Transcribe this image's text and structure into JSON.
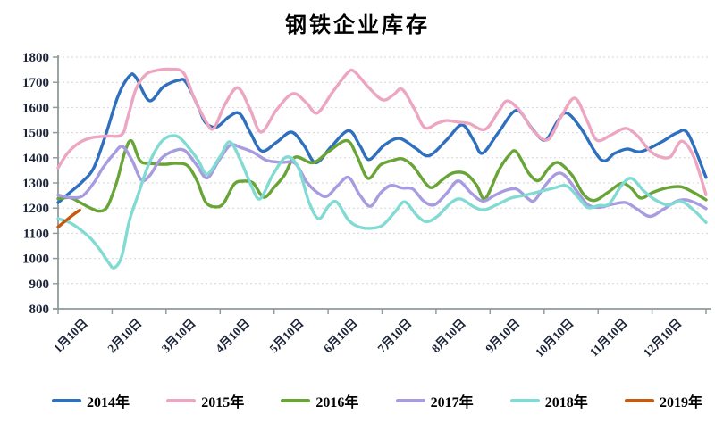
{
  "title": "钢铁企业库存",
  "chart_data": {
    "type": "line",
    "title": "钢铁企业库存",
    "xlabel": "",
    "ylabel": "",
    "x_axis": {
      "tick_labels": [
        "1月10日",
        "2月10日",
        "3月10日",
        "4月10日",
        "5月10日",
        "6月10日",
        "7月10日",
        "8月10日",
        "9月10日",
        "10月10日",
        "11月10日",
        "12月10日"
      ],
      "range_months": [
        0,
        12
      ]
    },
    "y_axis": {
      "min": 800,
      "max": 1800,
      "step": 100,
      "tick_labels": [
        "800",
        "900",
        "1000",
        "1100",
        "1200",
        "1300",
        "1400",
        "1500",
        "1600",
        "1700",
        "1800"
      ]
    },
    "grid": "horizontal-dashed",
    "legend_position": "bottom",
    "style_colors": {
      "axis": "#8f9a9b",
      "grid": "#d6d6d6",
      "tick_text": "#1b2338",
      "title_text": "#000000"
    },
    "series": [
      {
        "name": "2014年",
        "color": "#2e6fbe",
        "points": [
          [
            0,
            1222
          ],
          [
            0.22,
            1262
          ],
          [
            0.45,
            1305
          ],
          [
            0.66,
            1360
          ],
          [
            0.88,
            1490
          ],
          [
            1.11,
            1645
          ],
          [
            1.32,
            1725
          ],
          [
            1.44,
            1720
          ],
          [
            1.69,
            1627
          ],
          [
            1.95,
            1682
          ],
          [
            2.23,
            1708
          ],
          [
            2.37,
            1700
          ],
          [
            2.6,
            1600
          ],
          [
            2.73,
            1540
          ],
          [
            2.93,
            1522
          ],
          [
            3.16,
            1562
          ],
          [
            3.36,
            1576
          ],
          [
            3.56,
            1500
          ],
          [
            3.77,
            1427
          ],
          [
            4.05,
            1462
          ],
          [
            4.32,
            1502
          ],
          [
            4.55,
            1450
          ],
          [
            4.77,
            1380
          ],
          [
            5.05,
            1442
          ],
          [
            5.38,
            1508
          ],
          [
            5.59,
            1448
          ],
          [
            5.76,
            1393
          ],
          [
            6.04,
            1450
          ],
          [
            6.32,
            1477
          ],
          [
            6.62,
            1438
          ],
          [
            6.87,
            1408
          ],
          [
            7.2,
            1472
          ],
          [
            7.48,
            1531
          ],
          [
            7.7,
            1468
          ],
          [
            7.86,
            1418
          ],
          [
            8.16,
            1502
          ],
          [
            8.49,
            1589
          ],
          [
            8.77,
            1518
          ],
          [
            9.02,
            1470
          ],
          [
            9.25,
            1545
          ],
          [
            9.42,
            1578
          ],
          [
            9.68,
            1518
          ],
          [
            10.06,
            1392
          ],
          [
            10.31,
            1418
          ],
          [
            10.54,
            1435
          ],
          [
            10.79,
            1424
          ],
          [
            11.17,
            1462
          ],
          [
            11.47,
            1500
          ],
          [
            11.67,
            1494
          ],
          [
            12,
            1322
          ]
        ]
      },
      {
        "name": "2015年",
        "color": "#eda6c2",
        "points": [
          [
            0,
            1360
          ],
          [
            0.18,
            1420
          ],
          [
            0.41,
            1462
          ],
          [
            0.63,
            1480
          ],
          [
            0.91,
            1486
          ],
          [
            1.18,
            1492
          ],
          [
            1.29,
            1560
          ],
          [
            1.44,
            1672
          ],
          [
            1.62,
            1730
          ],
          [
            1.82,
            1747
          ],
          [
            2.07,
            1752
          ],
          [
            2.32,
            1738
          ],
          [
            2.52,
            1637
          ],
          [
            2.73,
            1548
          ],
          [
            2.88,
            1516
          ],
          [
            3.09,
            1612
          ],
          [
            3.33,
            1678
          ],
          [
            3.56,
            1590
          ],
          [
            3.76,
            1502
          ],
          [
            4.05,
            1592
          ],
          [
            4.35,
            1655
          ],
          [
            4.6,
            1618
          ],
          [
            4.8,
            1578
          ],
          [
            5.08,
            1660
          ],
          [
            5.35,
            1735
          ],
          [
            5.48,
            1744
          ],
          [
            5.74,
            1682
          ],
          [
            6.01,
            1630
          ],
          [
            6.21,
            1650
          ],
          [
            6.37,
            1672
          ],
          [
            6.59,
            1598
          ],
          [
            6.79,
            1520
          ],
          [
            7.03,
            1538
          ],
          [
            7.2,
            1548
          ],
          [
            7.4,
            1542
          ],
          [
            7.61,
            1536
          ],
          [
            7.91,
            1513
          ],
          [
            8.16,
            1585
          ],
          [
            8.32,
            1626
          ],
          [
            8.56,
            1585
          ],
          [
            8.8,
            1508
          ],
          [
            9.07,
            1472
          ],
          [
            9.32,
            1565
          ],
          [
            9.57,
            1637
          ],
          [
            9.8,
            1545
          ],
          [
            9.98,
            1470
          ],
          [
            10.25,
            1492
          ],
          [
            10.51,
            1517
          ],
          [
            10.73,
            1487
          ],
          [
            10.94,
            1432
          ],
          [
            11.12,
            1406
          ],
          [
            11.34,
            1404
          ],
          [
            11.55,
            1466
          ],
          [
            11.78,
            1400
          ],
          [
            12,
            1253
          ]
        ]
      },
      {
        "name": "2016年",
        "color": "#69a437",
        "points": [
          [
            0,
            1237
          ],
          [
            0.22,
            1242
          ],
          [
            0.41,
            1222
          ],
          [
            0.6,
            1200
          ],
          [
            0.76,
            1188
          ],
          [
            0.91,
            1205
          ],
          [
            1.08,
            1300
          ],
          [
            1.24,
            1425
          ],
          [
            1.36,
            1467
          ],
          [
            1.52,
            1388
          ],
          [
            1.74,
            1377
          ],
          [
            1.97,
            1374
          ],
          [
            2.2,
            1378
          ],
          [
            2.4,
            1368
          ],
          [
            2.57,
            1310
          ],
          [
            2.73,
            1225
          ],
          [
            2.9,
            1205
          ],
          [
            3.06,
            1218
          ],
          [
            3.26,
            1295
          ],
          [
            3.43,
            1307
          ],
          [
            3.61,
            1300
          ],
          [
            3.81,
            1243
          ],
          [
            4.01,
            1285
          ],
          [
            4.19,
            1330
          ],
          [
            4.39,
            1402
          ],
          [
            4.72,
            1380
          ],
          [
            5.01,
            1425
          ],
          [
            5.35,
            1468
          ],
          [
            5.54,
            1405
          ],
          [
            5.74,
            1318
          ],
          [
            5.97,
            1372
          ],
          [
            6.21,
            1390
          ],
          [
            6.37,
            1396
          ],
          [
            6.57,
            1368
          ],
          [
            6.8,
            1300
          ],
          [
            6.93,
            1282
          ],
          [
            7.13,
            1315
          ],
          [
            7.32,
            1340
          ],
          [
            7.55,
            1337
          ],
          [
            7.75,
            1292
          ],
          [
            7.91,
            1238
          ],
          [
            8.16,
            1350
          ],
          [
            8.36,
            1412
          ],
          [
            8.49,
            1423
          ],
          [
            8.72,
            1338
          ],
          [
            8.9,
            1310
          ],
          [
            9.1,
            1362
          ],
          [
            9.27,
            1380
          ],
          [
            9.52,
            1330
          ],
          [
            9.73,
            1255
          ],
          [
            9.93,
            1230
          ],
          [
            10.18,
            1262
          ],
          [
            10.43,
            1298
          ],
          [
            10.61,
            1280
          ],
          [
            10.79,
            1240
          ],
          [
            11.01,
            1262
          ],
          [
            11.27,
            1280
          ],
          [
            11.53,
            1285
          ],
          [
            11.77,
            1262
          ],
          [
            12,
            1233
          ]
        ]
      },
      {
        "name": "2017年",
        "color": "#a79ce0",
        "points": [
          [
            0,
            1252
          ],
          [
            0.22,
            1242
          ],
          [
            0.45,
            1248
          ],
          [
            0.66,
            1300
          ],
          [
            0.83,
            1360
          ],
          [
            1.03,
            1415
          ],
          [
            1.19,
            1445
          ],
          [
            1.37,
            1390
          ],
          [
            1.54,
            1312
          ],
          [
            1.7,
            1330
          ],
          [
            1.9,
            1395
          ],
          [
            2.15,
            1428
          ],
          [
            2.35,
            1428
          ],
          [
            2.57,
            1370
          ],
          [
            2.76,
            1320
          ],
          [
            2.98,
            1390
          ],
          [
            3.19,
            1450
          ],
          [
            3.39,
            1440
          ],
          [
            3.61,
            1422
          ],
          [
            3.86,
            1390
          ],
          [
            4.14,
            1382
          ],
          [
            4.39,
            1378
          ],
          [
            4.6,
            1305
          ],
          [
            4.8,
            1262
          ],
          [
            4.98,
            1247
          ],
          [
            5.18,
            1290
          ],
          [
            5.38,
            1322
          ],
          [
            5.58,
            1255
          ],
          [
            5.78,
            1207
          ],
          [
            5.97,
            1260
          ],
          [
            6.16,
            1290
          ],
          [
            6.37,
            1280
          ],
          [
            6.57,
            1276
          ],
          [
            6.77,
            1228
          ],
          [
            6.97,
            1213
          ],
          [
            7.2,
            1260
          ],
          [
            7.41,
            1308
          ],
          [
            7.65,
            1260
          ],
          [
            7.86,
            1228
          ],
          [
            8.08,
            1250
          ],
          [
            8.28,
            1270
          ],
          [
            8.49,
            1276
          ],
          [
            8.69,
            1240
          ],
          [
            8.82,
            1230
          ],
          [
            9.02,
            1290
          ],
          [
            9.22,
            1335
          ],
          [
            9.38,
            1330
          ],
          [
            9.6,
            1270
          ],
          [
            9.8,
            1215
          ],
          [
            10.01,
            1203
          ],
          [
            10.26,
            1215
          ],
          [
            10.51,
            1222
          ],
          [
            10.73,
            1195
          ],
          [
            10.96,
            1167
          ],
          [
            11.21,
            1195
          ],
          [
            11.45,
            1227
          ],
          [
            11.63,
            1233
          ],
          [
            11.83,
            1218
          ],
          [
            12,
            1198
          ]
        ]
      },
      {
        "name": "2018年",
        "color": "#82dbd3",
        "points": [
          [
            0,
            1158
          ],
          [
            0.22,
            1142
          ],
          [
            0.41,
            1115
          ],
          [
            0.61,
            1078
          ],
          [
            0.79,
            1030
          ],
          [
            0.93,
            985
          ],
          [
            1.04,
            963
          ],
          [
            1.18,
            1010
          ],
          [
            1.32,
            1150
          ],
          [
            1.49,
            1258
          ],
          [
            1.67,
            1370
          ],
          [
            1.87,
            1452
          ],
          [
            2.04,
            1484
          ],
          [
            2.23,
            1483
          ],
          [
            2.42,
            1440
          ],
          [
            2.6,
            1388
          ],
          [
            2.76,
            1335
          ],
          [
            3,
            1405
          ],
          [
            3.18,
            1463
          ],
          [
            3.39,
            1385
          ],
          [
            3.58,
            1288
          ],
          [
            3.74,
            1237
          ],
          [
            3.97,
            1330
          ],
          [
            4.22,
            1402
          ],
          [
            4.44,
            1365
          ],
          [
            4.65,
            1222
          ],
          [
            4.83,
            1158
          ],
          [
            5.01,
            1208
          ],
          [
            5.16,
            1224
          ],
          [
            5.38,
            1152
          ],
          [
            5.58,
            1125
          ],
          [
            5.79,
            1120
          ],
          [
            6.01,
            1132
          ],
          [
            6.24,
            1185
          ],
          [
            6.42,
            1225
          ],
          [
            6.64,
            1172
          ],
          [
            6.82,
            1146
          ],
          [
            7.03,
            1168
          ],
          [
            7.28,
            1222
          ],
          [
            7.46,
            1236
          ],
          [
            7.7,
            1205
          ],
          [
            7.89,
            1193
          ],
          [
            8.14,
            1215
          ],
          [
            8.39,
            1240
          ],
          [
            8.66,
            1252
          ],
          [
            8.92,
            1266
          ],
          [
            9.19,
            1280
          ],
          [
            9.42,
            1288
          ],
          [
            9.65,
            1238
          ],
          [
            9.81,
            1202
          ],
          [
            10.01,
            1210
          ],
          [
            10.21,
            1218
          ],
          [
            10.44,
            1292
          ],
          [
            10.62,
            1318
          ],
          [
            10.84,
            1270
          ],
          [
            11.05,
            1234
          ],
          [
            11.3,
            1212
          ],
          [
            11.53,
            1228
          ],
          [
            11.77,
            1192
          ],
          [
            12,
            1143
          ]
        ]
      },
      {
        "name": "2019年",
        "color": "#c55a11",
        "points": [
          [
            0,
            1125
          ],
          [
            0.14,
            1150
          ],
          [
            0.27,
            1172
          ],
          [
            0.4,
            1192
          ]
        ]
      }
    ]
  }
}
